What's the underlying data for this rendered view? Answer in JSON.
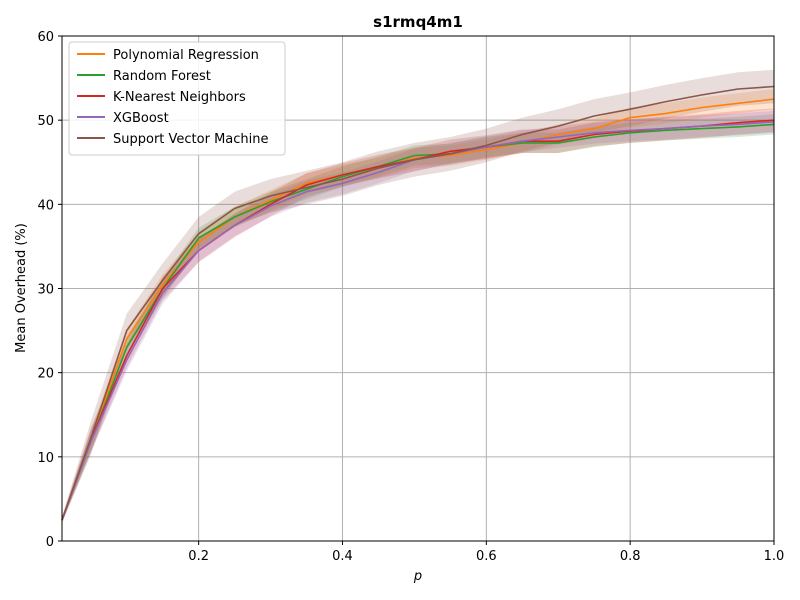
{
  "chart_data": {
    "type": "line",
    "title": "s1rmq4m1",
    "xlabel": "p",
    "ylabel": "Mean Overhead (%)",
    "xlim": [
      0.01,
      1.0
    ],
    "ylim": [
      0,
      60
    ],
    "xticks": [
      0.2,
      0.4,
      0.6,
      0.8,
      1.0
    ],
    "xtick_labels": [
      "0.2",
      "0.4",
      "0.6",
      "0.8",
      "1.0"
    ],
    "yticks": [
      0,
      10,
      20,
      30,
      40,
      50,
      60
    ],
    "ytick_labels": [
      "0",
      "10",
      "20",
      "30",
      "40",
      "50",
      "60"
    ],
    "grid": true,
    "legend_position": "top-left",
    "x": [
      0.01,
      0.05,
      0.1,
      0.15,
      0.2,
      0.25,
      0.3,
      0.35,
      0.4,
      0.45,
      0.5,
      0.55,
      0.6,
      0.65,
      0.7,
      0.75,
      0.8,
      0.85,
      0.9,
      0.95,
      1.0
    ],
    "series": [
      {
        "name": "Polynomial Regression",
        "color": "#ff7f0e",
        "values": [
          2.5,
          12.0,
          24.0,
          30.5,
          35.5,
          38.5,
          40.5,
          42.5,
          43.5,
          44.3,
          45.5,
          45.8,
          46.5,
          47.3,
          48.3,
          49.0,
          50.3,
          50.8,
          51.5,
          52.0,
          52.5
        ],
        "band": 1.2
      },
      {
        "name": "Random Forest",
        "color": "#2ca02c",
        "values": [
          2.5,
          11.8,
          23.0,
          30.0,
          36.0,
          38.5,
          40.3,
          41.8,
          43.3,
          44.5,
          45.8,
          46.0,
          46.8,
          47.3,
          47.3,
          48.0,
          48.5,
          48.8,
          49.0,
          49.2,
          49.5
        ],
        "band": 1.2
      },
      {
        "name": "K-Nearest Neighbors",
        "color": "#d62728",
        "values": [
          2.5,
          12.0,
          22.0,
          30.0,
          34.5,
          37.5,
          40.0,
          42.3,
          43.5,
          44.5,
          45.3,
          46.3,
          46.8,
          47.5,
          47.5,
          48.3,
          48.7,
          49.0,
          49.3,
          49.7,
          50.0
        ],
        "band": 1.4
      },
      {
        "name": "XGBoost",
        "color": "#9467bd",
        "values": [
          2.5,
          11.8,
          21.5,
          29.5,
          34.5,
          37.5,
          39.8,
          41.5,
          42.5,
          43.8,
          45.3,
          46.0,
          46.8,
          47.5,
          48.0,
          48.5,
          48.8,
          49.0,
          49.3,
          49.5,
          49.8
        ],
        "band": 1.3
      },
      {
        "name": "Support Vector Machine",
        "color": "#8c564b",
        "values": [
          2.5,
          12.2,
          25.0,
          31.0,
          36.5,
          39.5,
          41.0,
          42.0,
          43.0,
          44.3,
          45.3,
          46.0,
          47.0,
          48.3,
          49.3,
          50.5,
          51.3,
          52.2,
          53.0,
          53.7,
          54.0
        ],
        "band": 2.0
      }
    ]
  }
}
